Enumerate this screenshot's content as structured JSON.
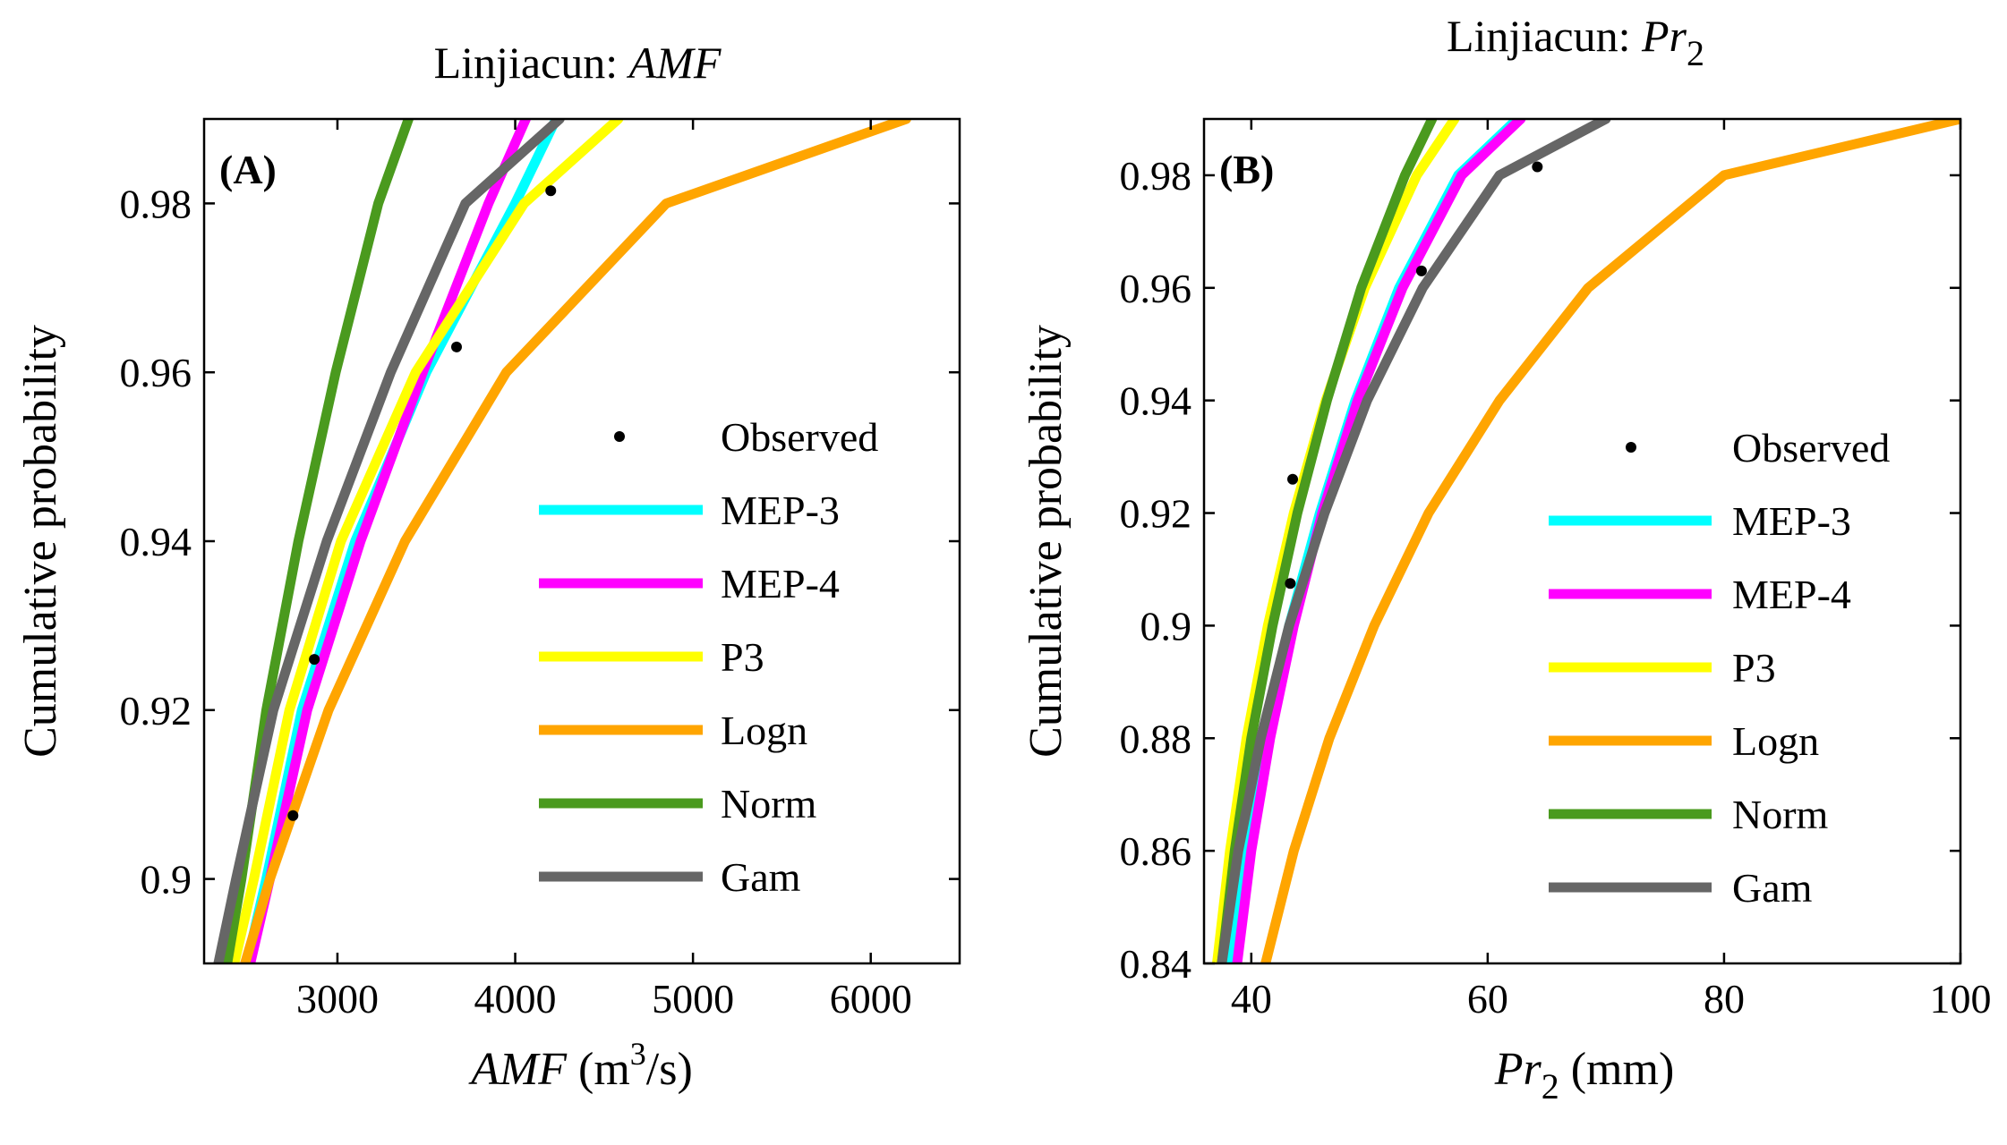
{
  "chart_data": [
    {
      "type": "line",
      "panel_label": "(A)",
      "title": "Linjiacun: ",
      "title_var": "AMF",
      "xlabel_var": "AMF",
      "xlabel_unit_pre": " (m",
      "xlabel_unit_sup": "3",
      "xlabel_unit_post": "/s)",
      "ylabel": "Cumulative probability",
      "xlim": [
        2250,
        6500
      ],
      "ylim": [
        0.89,
        0.99
      ],
      "xticks": [
        3000,
        4000,
        5000,
        6000
      ],
      "xtick_labels": [
        "3000",
        "4000",
        "5000",
        "6000"
      ],
      "yticks": [
        0.9,
        0.92,
        0.94,
        0.96,
        0.98
      ],
      "ytick_labels": [
        "0.9",
        "0.92",
        "0.94",
        "0.96",
        "0.98"
      ],
      "observed_name": "Observed",
      "observed": [
        {
          "x": 2750,
          "y": 0.9075
        },
        {
          "x": 2870,
          "y": 0.926
        },
        {
          "x": 3670,
          "y": 0.963
        },
        {
          "x": 4200,
          "y": 0.9815
        }
      ],
      "series": [
        {
          "name": "MEP-3",
          "color": "#00ffff",
          "points": [
            [
              2490,
              0.89
            ],
            [
              2600,
              0.9
            ],
            [
              2800,
              0.92
            ],
            [
              3100,
              0.94
            ],
            [
              3500,
              0.96
            ],
            [
              4000,
              0.98
            ],
            [
              4230,
              0.99
            ]
          ]
        },
        {
          "name": "MEP-4",
          "color": "#ff00ff",
          "points": [
            [
              2510,
              0.89
            ],
            [
              2620,
              0.9
            ],
            [
              2830,
              0.92
            ],
            [
              3130,
              0.94
            ],
            [
              3480,
              0.96
            ],
            [
              3850,
              0.98
            ],
            [
              4060,
              0.99
            ]
          ]
        },
        {
          "name": "P3",
          "color": "#ffff00",
          "points": [
            [
              2420,
              0.89
            ],
            [
              2530,
              0.9
            ],
            [
              2730,
              0.92
            ],
            [
              3020,
              0.94
            ],
            [
              3440,
              0.96
            ],
            [
              4050,
              0.98
            ],
            [
              4580,
              0.99
            ]
          ]
        },
        {
          "name": "Logn",
          "color": "#ffa500",
          "points": [
            [
              2480,
              0.89
            ],
            [
              2620,
              0.9
            ],
            [
              2950,
              0.92
            ],
            [
              3380,
              0.94
            ],
            [
              3950,
              0.96
            ],
            [
              4850,
              0.98
            ],
            [
              6200,
              0.99
            ]
          ]
        },
        {
          "name": "Norm",
          "color": "#4a9a1e",
          "points": [
            [
              2380,
              0.89
            ],
            [
              2460,
              0.9
            ],
            [
              2600,
              0.92
            ],
            [
              2780,
              0.94
            ],
            [
              2990,
              0.96
            ],
            [
              3230,
              0.98
            ],
            [
              3400,
              0.99
            ]
          ]
        },
        {
          "name": "Gam",
          "color": "#666666",
          "points": [
            [
              2330,
              0.89
            ],
            [
              2430,
              0.9
            ],
            [
              2640,
              0.92
            ],
            [
              2940,
              0.94
            ],
            [
              3300,
              0.96
            ],
            [
              3720,
              0.98
            ],
            [
              4250,
              0.99
            ]
          ]
        }
      ]
    },
    {
      "type": "line",
      "panel_label": "(B)",
      "title": "Linjiacun: ",
      "title_var": "Pr",
      "title_sub": "2",
      "xlabel_var": "Pr",
      "xlabel_sub": "2",
      "xlabel_unit": " (mm)",
      "ylabel": "Cumulative probability",
      "xlim": [
        36,
        100
      ],
      "ylim": [
        0.84,
        0.99
      ],
      "xticks": [
        40,
        60,
        80,
        100
      ],
      "xtick_labels": [
        "40",
        "60",
        "80",
        "100"
      ],
      "yticks": [
        0.84,
        0.86,
        0.88,
        0.9,
        0.92,
        0.94,
        0.96,
        0.98
      ],
      "ytick_labels": [
        "0.84",
        "0.86",
        "0.88",
        "0.9",
        "0.92",
        "0.94",
        "0.96",
        "0.98"
      ],
      "observed_name": "Observed",
      "observed": [
        {
          "x": 43.3,
          "y": 0.9075
        },
        {
          "x": 43.5,
          "y": 0.926
        },
        {
          "x": 54.4,
          "y": 0.963
        },
        {
          "x": 64.2,
          "y": 0.9815
        }
      ],
      "series": [
        {
          "name": "MEP-3",
          "color": "#00ffff",
          "points": [
            [
              38.2,
              0.84
            ],
            [
              39.5,
              0.86
            ],
            [
              41.2,
              0.88
            ],
            [
              43.2,
              0.9
            ],
            [
              45.8,
              0.92
            ],
            [
              48.8,
              0.94
            ],
            [
              52.5,
              0.96
            ],
            [
              57.5,
              0.98
            ],
            [
              62.5,
              0.99
            ]
          ]
        },
        {
          "name": "MEP-4",
          "color": "#ff00ff",
          "points": [
            [
              38.8,
              0.84
            ],
            [
              40.0,
              0.86
            ],
            [
              41.6,
              0.88
            ],
            [
              43.6,
              0.9
            ],
            [
              46.0,
              0.92
            ],
            [
              49.0,
              0.94
            ],
            [
              52.8,
              0.96
            ],
            [
              57.8,
              0.98
            ],
            [
              62.8,
              0.99
            ]
          ]
        },
        {
          "name": "P3",
          "color": "#ffff00",
          "points": [
            [
              37.1,
              0.84
            ],
            [
              38.2,
              0.86
            ],
            [
              39.6,
              0.88
            ],
            [
              41.4,
              0.9
            ],
            [
              43.6,
              0.92
            ],
            [
              46.3,
              0.94
            ],
            [
              49.6,
              0.96
            ],
            [
              54.0,
              0.98
            ],
            [
              57.2,
              0.99
            ]
          ]
        },
        {
          "name": "Logn",
          "color": "#ffa500",
          "points": [
            [
              41.2,
              0.84
            ],
            [
              43.6,
              0.86
            ],
            [
              46.6,
              0.88
            ],
            [
              50.4,
              0.9
            ],
            [
              55.0,
              0.92
            ],
            [
              61.0,
              0.94
            ],
            [
              68.5,
              0.96
            ],
            [
              80.0,
              0.98
            ],
            [
              100.0,
              0.99
            ]
          ]
        },
        {
          "name": "Norm",
          "color": "#4a9a1e",
          "points": [
            [
              37.5,
              0.84
            ],
            [
              38.6,
              0.86
            ],
            [
              40.0,
              0.88
            ],
            [
              41.8,
              0.9
            ],
            [
              43.9,
              0.92
            ],
            [
              46.4,
              0.94
            ],
            [
              49.3,
              0.96
            ],
            [
              53.0,
              0.98
            ],
            [
              55.3,
              0.99
            ]
          ]
        },
        {
          "name": "Gam",
          "color": "#666666",
          "points": [
            [
              37.5,
              0.84
            ],
            [
              38.9,
              0.86
            ],
            [
              40.8,
              0.88
            ],
            [
              43.2,
              0.9
            ],
            [
              46.2,
              0.92
            ],
            [
              49.8,
              0.94
            ],
            [
              54.5,
              0.96
            ],
            [
              61.0,
              0.98
            ],
            [
              70.0,
              0.99
            ]
          ]
        }
      ]
    }
  ]
}
